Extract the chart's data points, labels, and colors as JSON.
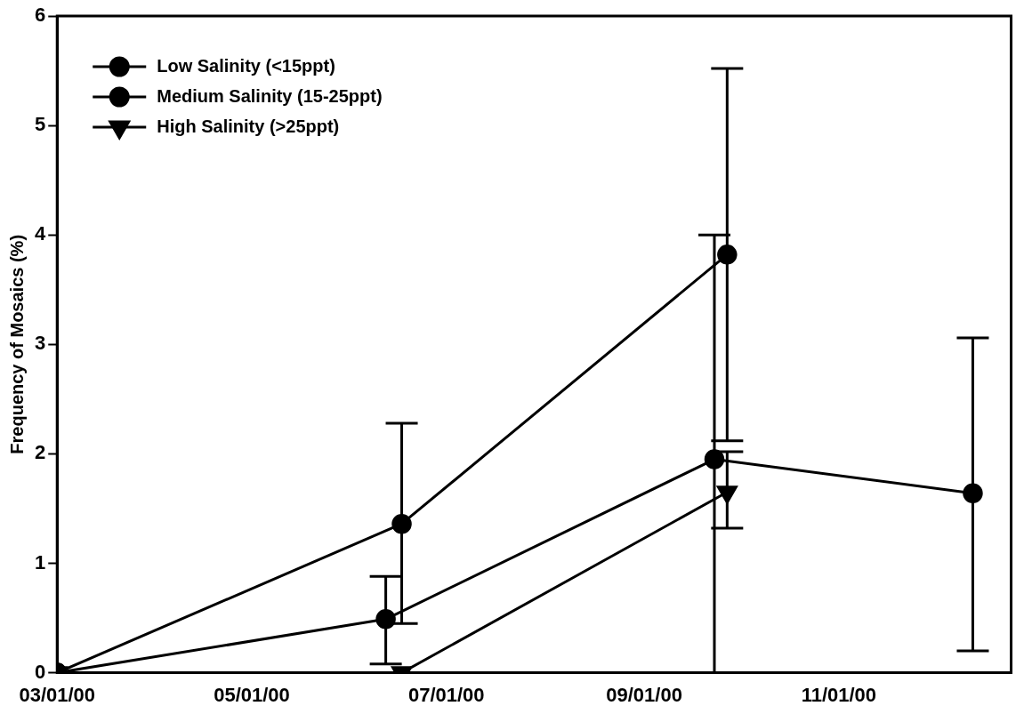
{
  "chart_data": {
    "type": "line",
    "ylabel": "Frequency of Mosaics (%)",
    "xlim": [
      "2000-03-01",
      "2000-12-25"
    ],
    "xticks": [
      {
        "value": "2000-03-01",
        "label": "03/01/00"
      },
      {
        "value": "2000-05-01",
        "label": "05/01/00"
      },
      {
        "value": "2000-07-01",
        "label": "07/01/00"
      },
      {
        "value": "2000-09-01",
        "label": "09/01/00"
      },
      {
        "value": "2000-11-01",
        "label": "11/01/00"
      }
    ],
    "ylim": [
      0,
      6
    ],
    "yticks": [
      0,
      1,
      2,
      3,
      4,
      5,
      6
    ],
    "grid": false,
    "legend": "top left",
    "series": [
      {
        "name": "Low Salinity (<15ppt)",
        "color": "#000000",
        "marker": "circle",
        "x": [
          "2000-03-01",
          "2000-06-12",
          "2000-09-23",
          "2000-12-13"
        ],
        "values": [
          0,
          0.49,
          1.95,
          1.64
        ],
        "errors": [
          null,
          [
            0.08,
            0.88
          ],
          [
            0,
            4.0
          ],
          [
            0.2,
            3.06
          ]
        ]
      },
      {
        "name": "Medium Salinity (15-25ppt)",
        "color": "#000000",
        "marker": "circle",
        "x": [
          "2000-03-01",
          "2000-06-17",
          "2000-09-27"
        ],
        "values": [
          0,
          1.36,
          3.82
        ],
        "errors": [
          null,
          [
            0.45,
            2.28
          ],
          [
            2.12,
            5.52
          ]
        ]
      },
      {
        "name": "High Salinity (>25ppt)",
        "color": "#000000",
        "marker": "triangle",
        "x": [
          "2000-03-01",
          "2000-06-17",
          "2000-09-27"
        ],
        "values": [
          0,
          0,
          1.65
        ],
        "errors": [
          null,
          null,
          [
            1.32,
            2.02
          ]
        ]
      }
    ]
  }
}
